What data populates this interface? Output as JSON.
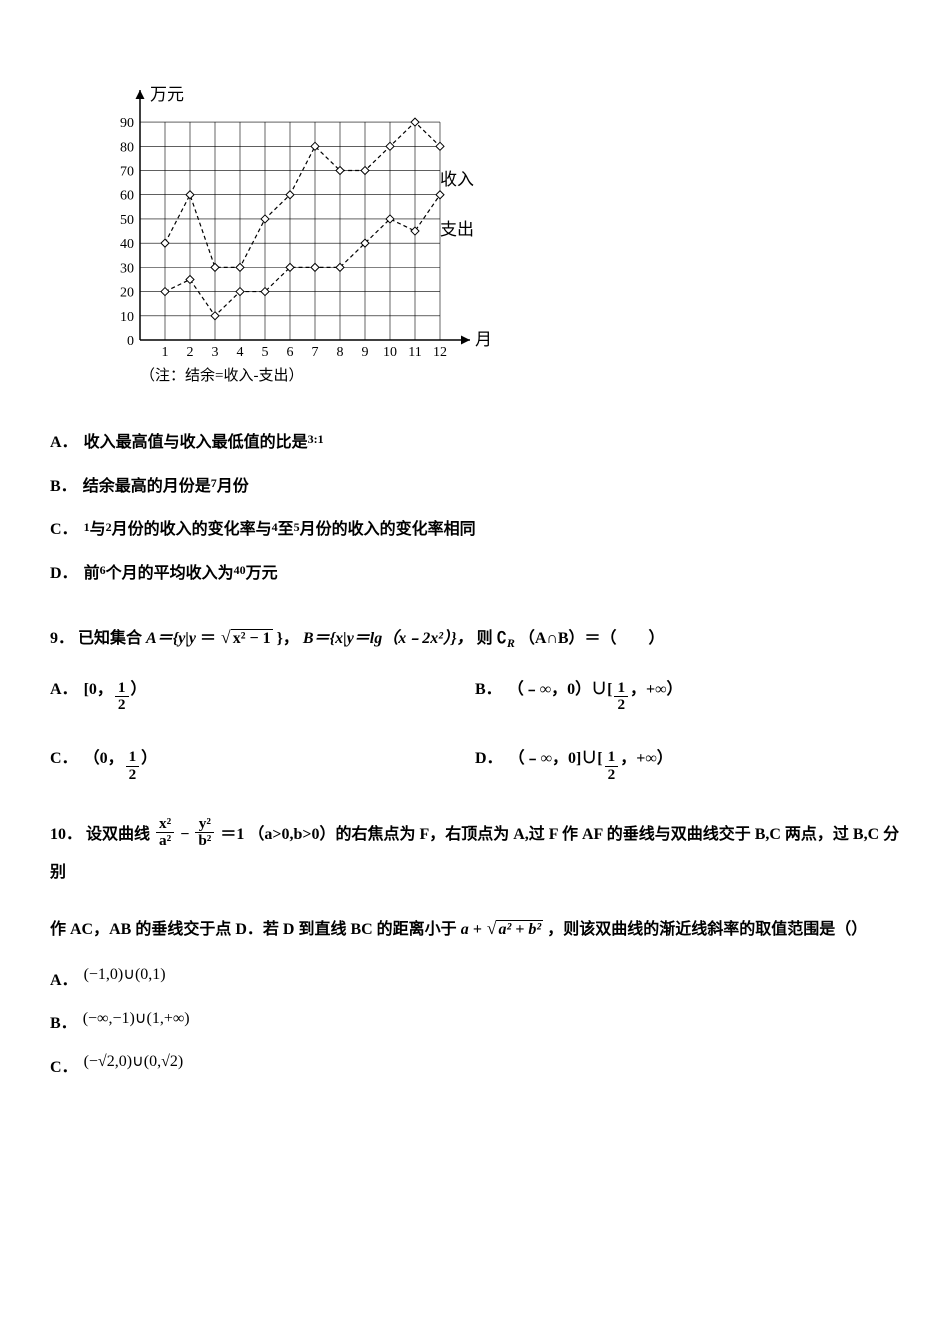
{
  "chart": {
    "type": "line",
    "y_axis_label": "万元",
    "x_axis_label": "月",
    "y_ticks": [
      0,
      10,
      20,
      30,
      40,
      50,
      60,
      70,
      80,
      90
    ],
    "x_ticks": [
      1,
      2,
      3,
      4,
      5,
      6,
      7,
      8,
      9,
      10,
      11,
      12
    ],
    "ylim": [
      0,
      95
    ],
    "xlim": [
      0,
      13
    ],
    "series": [
      {
        "name": "收入",
        "marker": "diamond",
        "dash": "4,3",
        "data": [
          40,
          60,
          30,
          30,
          50,
          60,
          80,
          70,
          70,
          80,
          90,
          80
        ]
      },
      {
        "name": "支出",
        "marker": "diamond",
        "dash": "4,3",
        "data": [
          20,
          25,
          10,
          20,
          20,
          30,
          30,
          30,
          40,
          50,
          45,
          60
        ]
      }
    ],
    "legend_income": "收入",
    "legend_expense": "支出",
    "note": "（注：结余=收入-支出）",
    "background_color": "#ffffff",
    "grid_color": "#000000",
    "line_color": "#000000",
    "text_color": "#000000"
  },
  "q8": {
    "A": {
      "prefix": "A．",
      "text1": "收入最高值与收入最低值的比是",
      "ratio": "3:1"
    },
    "B": {
      "prefix": "B．",
      "text1": "结余最高的月份是",
      "num": "7",
      "text2": "月份"
    },
    "C": {
      "prefix": "C．",
      "n1": "1",
      "t1": "与",
      "n2": "2",
      "t2": "月份的收入的变化率与",
      "n3": "4",
      "t3": "至",
      "n4": "5",
      "t4": "月份的收入的变化率相同"
    },
    "D": {
      "prefix": "D．",
      "t1": "前",
      "n1": "6",
      "t2": "个月的平均收入为",
      "n2": "40",
      "t3": "万元"
    }
  },
  "q9": {
    "num": "9．",
    "text1": "已知集合",
    "setA_lhs": "A＝{y|y",
    "eq": "＝",
    "sqrt_body": "x² − 1",
    "text2": "}，",
    "setB": "B＝{x|y＝lg（x﹣2x²）}，",
    "text3": "则",
    "comp": "∁",
    "compSub": "R",
    "text4": "（A∩B）＝（　　）",
    "A": {
      "label": "A．",
      "text": "[0，",
      "after": "）"
    },
    "B": {
      "label": "B．",
      "text1": "（﹣∞，0）∪[",
      "after": "，+∞）"
    },
    "C": {
      "label": "C．",
      "text": "（0，",
      "after": "）"
    },
    "D": {
      "label": "D．",
      "text1": "（﹣∞，0]∪[",
      "after": "，+∞）"
    },
    "half_num": "1",
    "half_den": "2"
  },
  "q10": {
    "num": "10．",
    "t1": "设双曲线",
    "eq_part": "＝1",
    "frac1_num": "x²",
    "frac1_den": "a²",
    "minus": "−",
    "frac2_num": "y²",
    "frac2_den": "b²",
    "t2": "（a>0,b>0）的右焦点为 F，右顶点为 A,过 F 作 AF 的垂线与双曲线交于 B,C 两点，过 B,C 分别",
    "t3": "作 AC，AB 的垂线交于点 D．若 D 到直线 BC 的距离小于",
    "sqrt_pre": "a +",
    "sqrt_body": "a² + b²",
    "t4": "，则该双曲线的渐近线斜率的取值范围是（）",
    "A": {
      "label": "A．",
      "text": "(−1,0)∪(0,1)"
    },
    "B": {
      "label": "B．",
      "text": "(−∞,−1)∪(1,+∞)"
    },
    "C": {
      "label": "C．",
      "text": "(−√2,0)∪(0,√2)"
    }
  }
}
